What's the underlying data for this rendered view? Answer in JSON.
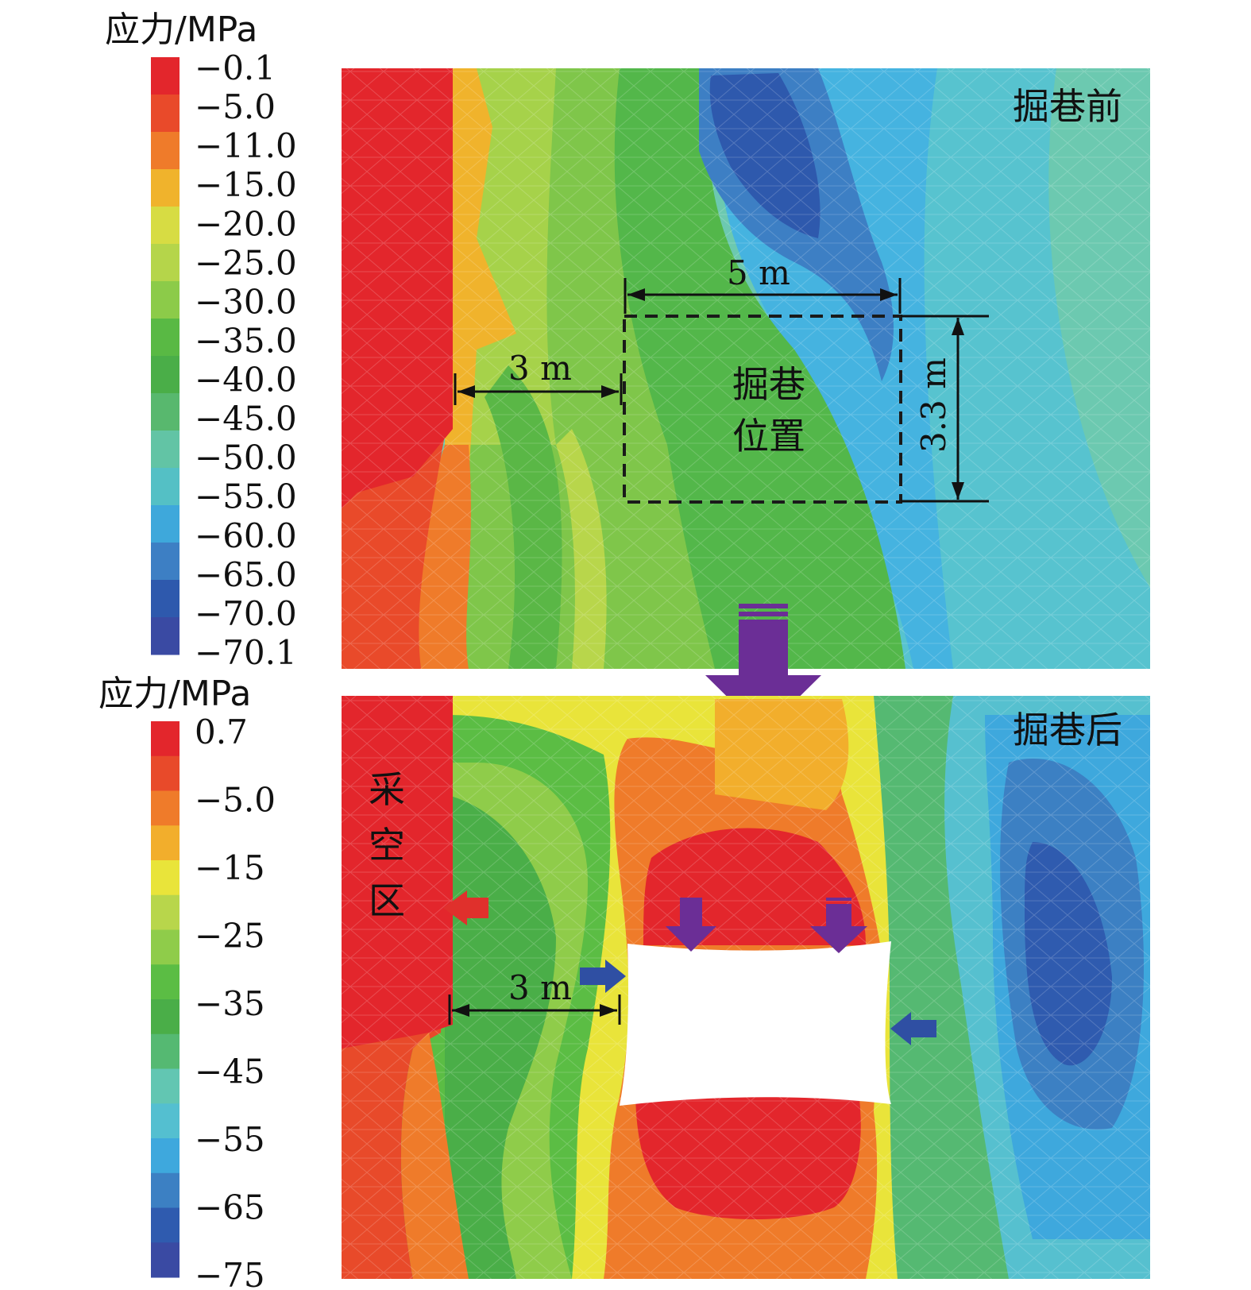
{
  "legend_top": {
    "title": "应力/MPa",
    "ticks": [
      "−0.1",
      "−5.0",
      "−11.0",
      "−15.0",
      "−20.0",
      "−25.0",
      "−30.0",
      "−35.0",
      "−40.0",
      "−45.0",
      "−50.0",
      "−55.0",
      "−60.0",
      "−65.0",
      "−70.0",
      "−70.1"
    ],
    "colors": [
      "#e3262c",
      "#e94a2a",
      "#ef7b2a",
      "#f0b32c",
      "#d7dc43",
      "#b5d54a",
      "#8ccb49",
      "#59b944",
      "#4aae48",
      "#58b86e",
      "#62c4a5",
      "#54c0c5",
      "#3ea8db",
      "#3d7fc4",
      "#2e59ad",
      "#3a4aa3"
    ]
  },
  "legend_bottom": {
    "title": "应力/MPa",
    "ticks": [
      "0.7",
      "−5.0",
      "−15",
      "−25",
      "−35",
      "−45",
      "−55",
      "−65",
      "−75"
    ],
    "colors": [
      "#e3262c",
      "#e84a2a",
      "#ef7b2a",
      "#f2ae2c",
      "#e9e43a",
      "#b8d64b",
      "#8fcc4a",
      "#5bbd44",
      "#4aae48",
      "#55b972",
      "#62c6b2",
      "#54bfd0",
      "#3ea8dd",
      "#3c80c3",
      "#2f5baf",
      "#3a4aa3"
    ]
  },
  "panel_top": {
    "label": "掘巷前",
    "roadway_label_1": "掘巷",
    "roadway_label_2": "位置",
    "dim_width": "5 m",
    "dim_height": "3.3 m",
    "dim_pillar": "3 m"
  },
  "panel_bottom": {
    "label": "掘巷后",
    "goaf_1": "采",
    "goaf_2": "空",
    "goaf_3": "区",
    "dim_pillar": "3 m"
  },
  "colors": {
    "arrow_purple": "#6b2e96",
    "arrow_blue": "#2f4fa3",
    "arrow_red": "#e0302c"
  }
}
